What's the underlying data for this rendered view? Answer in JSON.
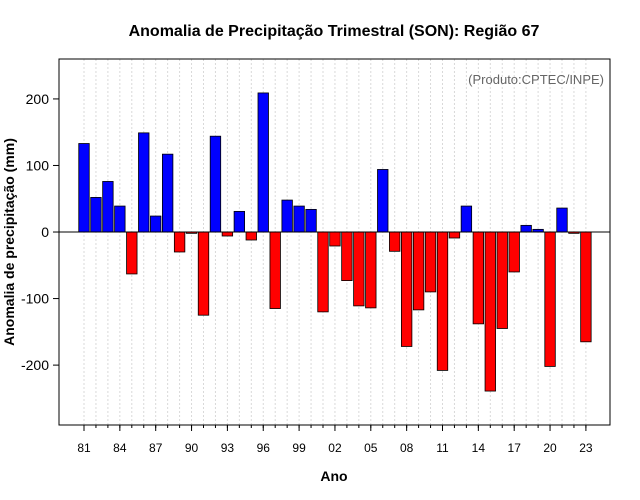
{
  "chart_data": {
    "type": "bar",
    "title": "Anomalia de Precipitação Trimestral (SON): Região 67",
    "xlabel": "Ano",
    "ylabel": "Anomalia de precipitação (mm)",
    "credit": "(Produto:CPTEC/INPE)",
    "ylim": [
      -290,
      260
    ],
    "yticks": [
      -200,
      -100,
      0,
      100,
      200
    ],
    "ytick_labels": [
      "-200",
      "-100",
      "0",
      "100",
      "200"
    ],
    "x_tick_labels": [
      "81",
      "84",
      "87",
      "90",
      "93",
      "96",
      "99",
      "02",
      "05",
      "08",
      "11",
      "14",
      "17",
      "20",
      "23"
    ],
    "x_tick_years": [
      1981,
      1984,
      1987,
      1990,
      1993,
      1996,
      1999,
      2002,
      2005,
      2008,
      2011,
      2014,
      2017,
      2020,
      2023
    ],
    "years": [
      1981,
      1982,
      1983,
      1984,
      1985,
      1986,
      1987,
      1988,
      1989,
      1990,
      1991,
      1992,
      1993,
      1994,
      1995,
      1996,
      1997,
      1998,
      1999,
      2000,
      2001,
      2002,
      2003,
      2004,
      2005,
      2006,
      2007,
      2008,
      2009,
      2010,
      2011,
      2012,
      2013,
      2014,
      2015,
      2016,
      2017,
      2018,
      2019,
      2020,
      2021,
      2022,
      2023
    ],
    "values": [
      133,
      52,
      76,
      39,
      -63,
      149,
      24,
      117,
      -30,
      -2,
      -125,
      144,
      -6,
      31,
      -12,
      209,
      -115,
      48,
      39,
      34,
      -120,
      -21,
      -73,
      -111,
      -114,
      94,
      -29,
      -172,
      -117,
      -90,
      -208,
      -9,
      39,
      -138,
      -239,
      -145,
      -60,
      10,
      4,
      -202,
      36,
      -2,
      -165
    ],
    "colors": {
      "positive": "#0000ff",
      "negative": "#ff0000",
      "zero_line": "#000000",
      "grid": "#d9d9d9"
    },
    "grid": true
  }
}
